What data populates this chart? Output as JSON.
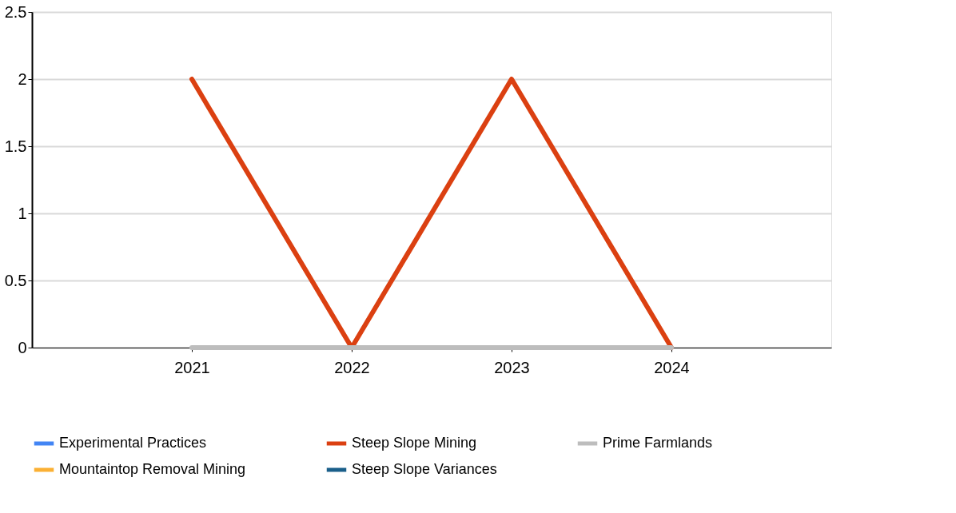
{
  "chart_data": {
    "type": "line",
    "categories": [
      "2021",
      "2022",
      "2023",
      "2024"
    ],
    "series": [
      {
        "name": "Experimental Practices",
        "color": "#4285f4",
        "values": [
          null,
          null,
          null,
          null
        ]
      },
      {
        "name": "Steep Slope Mining",
        "color": "#db4011",
        "values": [
          2,
          0,
          2,
          0
        ]
      },
      {
        "name": "Prime Farmlands",
        "color": "#bdbdbd",
        "values": [
          0,
          0,
          0,
          0
        ]
      },
      {
        "name": "Mountaintop Removal Mining",
        "color": "#fbb034",
        "values": [
          null,
          null,
          null,
          null
        ]
      },
      {
        "name": "Steep Slope Variances",
        "color": "#1a5f8a",
        "values": [
          null,
          null,
          null,
          null
        ]
      }
    ],
    "ylim": [
      0,
      2.5
    ],
    "yticks": [
      0,
      0.5,
      1,
      1.5,
      2,
      2.5
    ],
    "grid": "y",
    "legend": "bottom",
    "marker": "none",
    "line_style": "solid"
  }
}
